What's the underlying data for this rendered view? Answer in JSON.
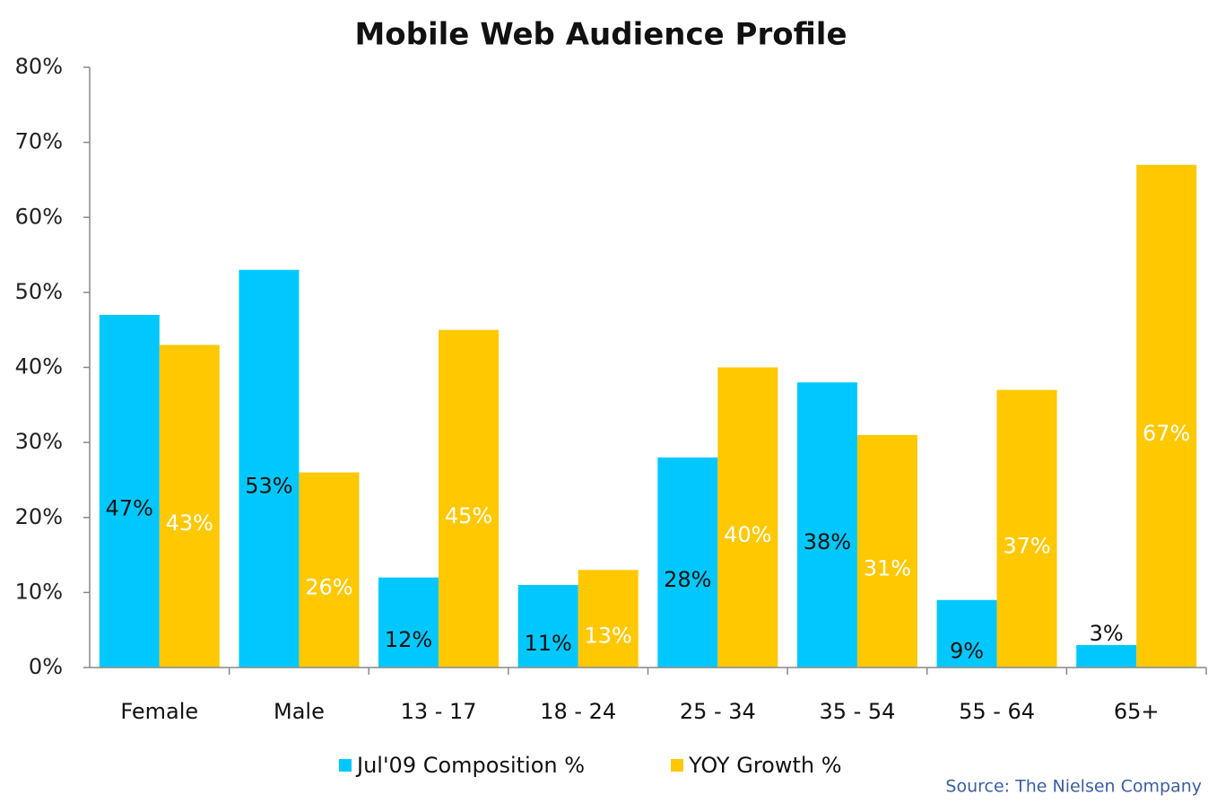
{
  "chart_data": {
    "type": "bar",
    "title": "Mobile Web Audience Profile",
    "categories": [
      "Female",
      "Male",
      "13 - 17",
      "18 - 24",
      "25 - 34",
      "35 - 54",
      "55 - 64",
      "65+"
    ],
    "series": [
      {
        "name": "Jul'09 Composition %",
        "color": "#00c8ff",
        "values": [
          47,
          53,
          12,
          11,
          28,
          38,
          9,
          3
        ],
        "value_labels": [
          "47%",
          "53%",
          "12%",
          "11%",
          "28%",
          "38%",
          "9%",
          "3%"
        ]
      },
      {
        "name": "YOY Growth %",
        "color": "#ffc800",
        "values": [
          43,
          26,
          45,
          13,
          40,
          31,
          37,
          67
        ],
        "value_labels": [
          "43%",
          "26%",
          "45%",
          "13%",
          "40%",
          "31%",
          "37%",
          "67%"
        ]
      }
    ],
    "ylim": [
      0,
      80
    ],
    "yticks": [
      {
        "value": 0,
        "label": "0%"
      },
      {
        "value": 10,
        "label": "10%"
      },
      {
        "value": 20,
        "label": "20%"
      },
      {
        "value": 30,
        "label": "30%"
      },
      {
        "value": 40,
        "label": "40%"
      },
      {
        "value": 50,
        "label": "50%"
      },
      {
        "value": 60,
        "label": "60%"
      },
      {
        "value": 70,
        "label": "70%"
      },
      {
        "value": 80,
        "label": "80%"
      }
    ],
    "legend": "bottom",
    "source": "Source: The Nielsen Company"
  }
}
